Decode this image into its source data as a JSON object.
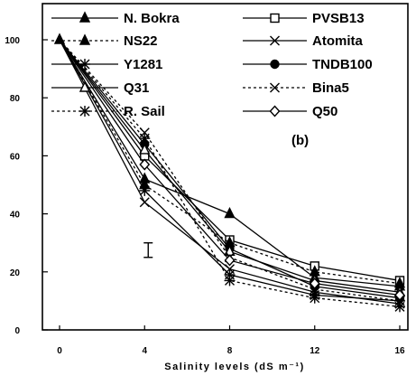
{
  "chart_data": {
    "type": "line",
    "panel_label": "(b)",
    "xlabel": "Salinity levels (dS m⁻¹)",
    "ylabel": "",
    "x": [
      0,
      4,
      8,
      12,
      16
    ],
    "x_ticks": [
      "0",
      "4",
      "8",
      "12",
      "16"
    ],
    "y_ticks": [
      "0",
      "20",
      "40",
      "60",
      "80",
      "100"
    ],
    "xlim": [
      0,
      16
    ],
    "ylim": [
      0,
      100
    ],
    "grid": false,
    "legend_position": "top",
    "error_bar": {
      "x": 4,
      "y_low": 25,
      "y_high": 30
    },
    "series": [
      {
        "name": "N. Bokra",
        "marker": "triangle-filled",
        "dash": "solid",
        "values": [
          100,
          52,
          40,
          18,
          15
        ]
      },
      {
        "name": "PVSB13",
        "marker": "square-open",
        "dash": "solid",
        "values": [
          100,
          60,
          31,
          22,
          17
        ]
      },
      {
        "name": "NS22",
        "marker": "triangle-filled",
        "dash": "dashed",
        "values": [
          100,
          50,
          30,
          20,
          16
        ]
      },
      {
        "name": "Atomita",
        "marker": "x",
        "dash": "solid",
        "values": [
          100,
          44,
          21,
          13,
          9
        ]
      },
      {
        "name": "Y1281",
        "marker": "asterisk",
        "dash": "solid",
        "values": [
          100,
          48,
          19,
          12,
          10
        ]
      },
      {
        "name": "TNDB100",
        "marker": "circle-filled",
        "dash": "solid",
        "values": [
          100,
          64,
          28,
          15,
          11
        ]
      },
      {
        "name": "Q31",
        "marker": "triangle-open",
        "dash": "solid",
        "values": [
          100,
          62,
          27,
          17,
          13
        ]
      },
      {
        "name": "Bina5",
        "marker": "x",
        "dash": "dashed",
        "values": [
          100,
          68,
          25,
          14,
          10
        ]
      },
      {
        "name": "R. Sail",
        "marker": "asterisk",
        "dash": "dashed",
        "values": [
          100,
          66,
          17,
          11,
          8
        ]
      },
      {
        "name": "Q50",
        "marker": "diamond-open",
        "dash": "solid",
        "values": [
          100,
          57,
          24,
          16,
          12
        ]
      }
    ]
  }
}
